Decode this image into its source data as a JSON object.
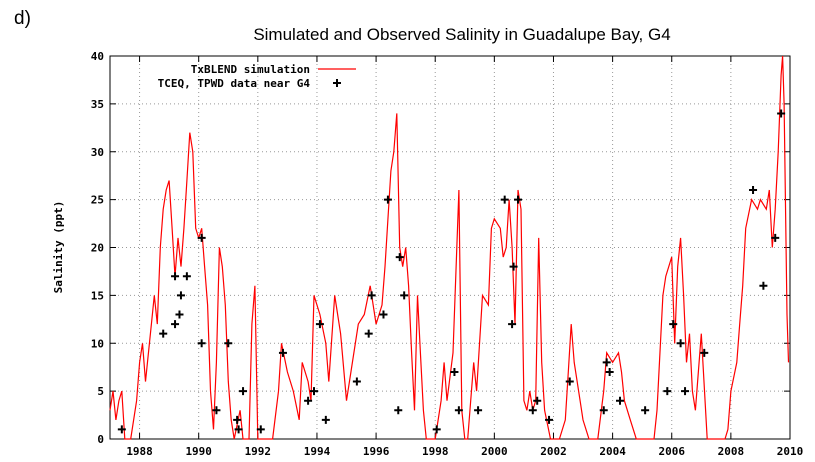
{
  "panel_label": "d)",
  "chart_data": {
    "type": "line",
    "title": "Simulated and Observed Salinity in Guadalupe Bay, G4",
    "y_label": "Salinity (ppt)",
    "xlim": [
      1987,
      2010
    ],
    "xticks": [
      1988,
      1990,
      1992,
      1994,
      1996,
      1998,
      2000,
      2002,
      2004,
      2006,
      2008,
      2010
    ],
    "ylim": [
      0,
      40
    ],
    "yticks": [
      0,
      5,
      10,
      15,
      20,
      25,
      30,
      35,
      40
    ],
    "grid": true,
    "legend": "top-left",
    "series": [
      {
        "name": "TxBLEND simulation",
        "color": "#ff0000",
        "marker": "line",
        "x": [
          1987.0,
          1987.1,
          1987.2,
          1987.3,
          1987.4,
          1987.5,
          1987.7,
          1987.9,
          1988.0,
          1988.1,
          1988.2,
          1988.4,
          1988.5,
          1988.6,
          1988.7,
          1988.8,
          1988.9,
          1989.0,
          1989.1,
          1989.2,
          1989.3,
          1989.4,
          1989.5,
          1989.6,
          1989.7,
          1989.8,
          1989.9,
          1990.0,
          1990.1,
          1990.2,
          1990.3,
          1990.4,
          1990.5,
          1990.6,
          1990.7,
          1990.8,
          1990.9,
          1991.0,
          1991.1,
          1991.2,
          1991.4,
          1991.5,
          1991.7,
          1991.8,
          1991.9,
          1992.0,
          1992.5,
          1992.7,
          1992.8,
          1993.0,
          1993.2,
          1993.4,
          1993.5,
          1993.7,
          1993.8,
          1993.9,
          1994.1,
          1994.3,
          1994.4,
          1994.6,
          1994.8,
          1995.0,
          1995.2,
          1995.4,
          1995.6,
          1995.8,
          1996.0,
          1996.2,
          1996.3,
          1996.5,
          1996.6,
          1996.7,
          1996.8,
          1996.9,
          1997.0,
          1997.1,
          1997.2,
          1997.3,
          1997.4,
          1997.5,
          1997.6,
          1997.7,
          1998.0,
          1998.2,
          1998.3,
          1998.4,
          1998.6,
          1998.8,
          1998.9,
          1999.0,
          1999.1,
          1999.3,
          1999.4,
          1999.6,
          1999.8,
          1999.9,
          2000.0,
          2000.2,
          2000.3,
          2000.4,
          2000.5,
          2000.6,
          2000.7,
          2000.8,
          2000.9,
          2001.0,
          2001.1,
          2001.2,
          2001.3,
          2001.4,
          2001.5,
          2001.6,
          2001.7,
          2001.9,
          2002.2,
          2002.4,
          2002.5,
          2002.6,
          2002.7,
          2002.9,
          2003.0,
          2003.2,
          2003.5,
          2003.7,
          2003.8,
          2004.0,
          2004.2,
          2004.3,
          2004.4,
          2004.6,
          2004.8,
          2005.4,
          2005.5,
          2005.7,
          2005.8,
          2006.0,
          2006.1,
          2006.2,
          2006.3,
          2006.4,
          2006.5,
          2006.6,
          2006.7,
          2006.8,
          2007.0,
          2007.2,
          2007.8,
          2007.9,
          2008.0,
          2008.2,
          2008.3,
          2008.4,
          2008.5,
          2008.7,
          2008.9,
          2009.0,
          2009.2,
          2009.3,
          2009.4,
          2009.5,
          2009.6,
          2009.7,
          2009.75,
          2009.8,
          2009.9,
          2009.95
        ],
        "values": [
          3,
          5,
          2,
          4,
          5,
          0,
          0,
          4,
          8,
          10,
          6,
          12,
          15,
          12,
          20,
          24,
          26,
          27,
          22,
          17,
          21,
          18,
          22,
          27,
          32,
          30,
          22,
          21,
          22,
          18,
          14,
          5,
          1,
          8,
          20,
          18,
          14,
          6,
          2,
          0,
          3,
          0,
          0,
          12,
          16,
          0,
          0,
          5,
          10,
          7,
          5,
          2,
          8,
          6,
          4,
          15,
          13,
          10,
          6,
          15,
          11,
          4,
          8,
          12,
          13,
          16,
          12,
          14,
          18,
          28,
          30,
          34,
          20,
          18,
          20,
          16,
          9,
          3,
          15,
          9,
          3,
          0,
          0,
          4,
          8,
          4,
          9,
          26,
          3,
          0,
          0,
          8,
          5,
          15,
          14,
          22,
          23,
          22,
          19,
          20,
          25,
          20,
          12,
          26,
          24,
          4,
          3,
          5,
          3,
          4,
          21,
          8,
          3,
          0,
          0,
          2,
          7,
          12,
          8,
          4,
          2,
          0,
          0,
          5,
          9,
          8,
          9,
          7,
          4,
          2,
          0,
          0,
          3,
          15,
          17,
          19,
          10,
          18,
          21,
          15,
          8,
          11,
          5,
          3,
          11,
          0,
          0,
          1,
          5,
          8,
          12,
          16,
          22,
          25,
          24,
          25,
          24,
          26,
          20,
          24,
          30,
          38,
          40,
          35,
          13,
          8
        ]
      },
      {
        "name": "TCEQ, TPWD data near G4",
        "color": "#000000",
        "marker": "plus",
        "x": [
          1987.4,
          1988.8,
          1989.2,
          1989.35,
          1989.4,
          1989.2,
          1989.6,
          1990.1,
          1990.1,
          1990.6,
          1991.0,
          1991.3,
          1991.35,
          1991.5,
          1992.1,
          1992.85,
          1993.7,
          1993.9,
          1994.1,
          1994.3,
          1995.35,
          1995.75,
          1995.85,
          1996.25,
          1996.4,
          1996.75,
          1996.8,
          1996.95,
          1998.05,
          1998.65,
          1998.8,
          1999.45,
          2000.35,
          2000.6,
          2000.65,
          2000.8,
          2001.3,
          2001.45,
          2001.85,
          2002.55,
          2003.7,
          2003.8,
          2003.9,
          2004.25,
          2005.1,
          2005.85,
          2006.05,
          2006.3,
          2006.45,
          2007.1,
          2008.75,
          2009.1,
          2009.5,
          2009.7
        ],
        "values": [
          1,
          11,
          12,
          13,
          15,
          17,
          17,
          21,
          10,
          3,
          10,
          2,
          1,
          5,
          1,
          9,
          4,
          5,
          12,
          2,
          6,
          11,
          15,
          13,
          25,
          3,
          19,
          15,
          1,
          7,
          3,
          3,
          25,
          12,
          18,
          25,
          3,
          4,
          2,
          6,
          3,
          8,
          7,
          4,
          3,
          5,
          12,
          10,
          5,
          9,
          26,
          16,
          21,
          34
        ]
      }
    ]
  }
}
